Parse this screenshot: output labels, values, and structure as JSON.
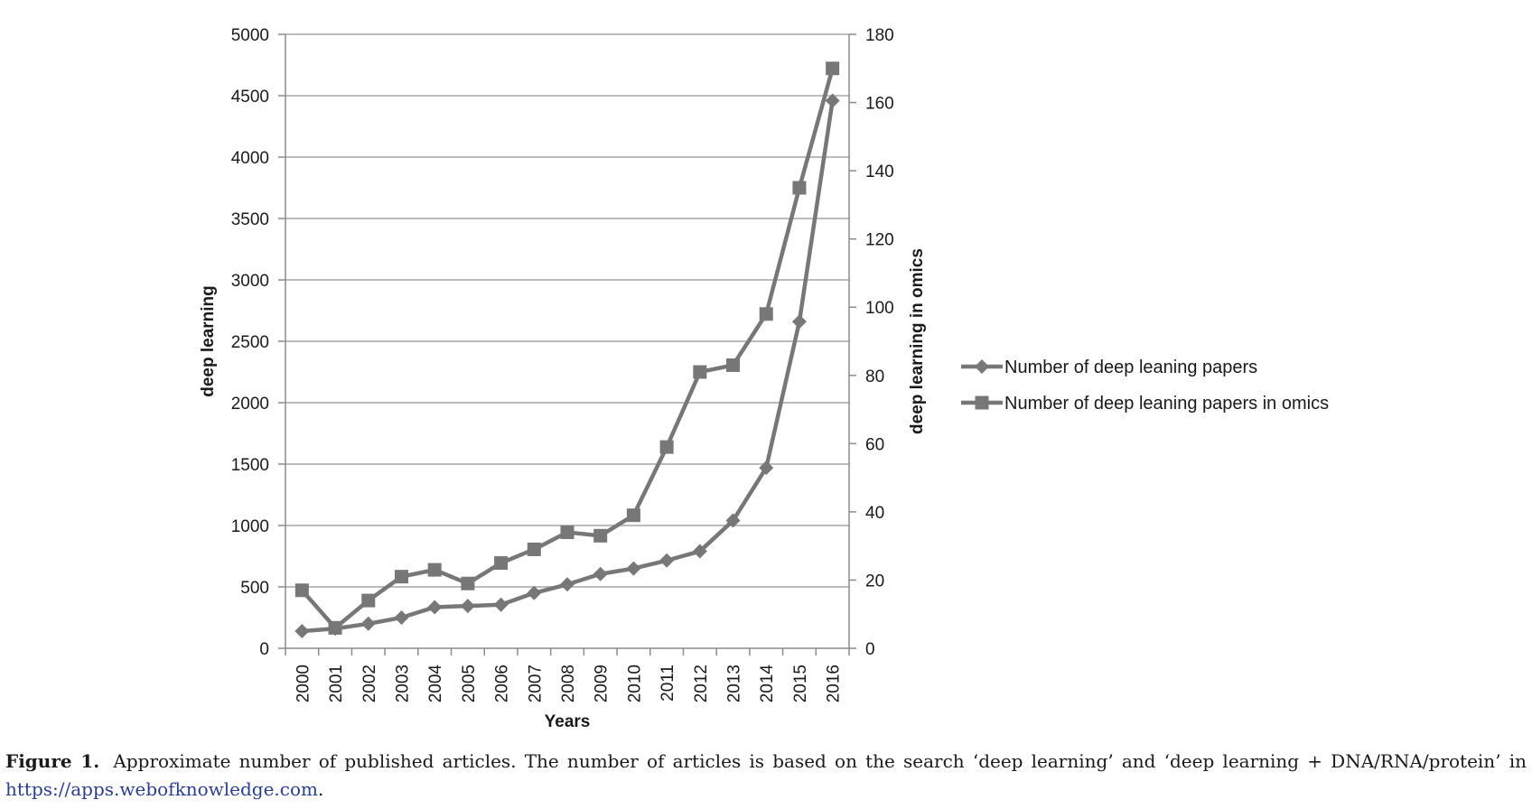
{
  "chart_data": {
    "type": "line",
    "categories": [
      "2000",
      "2001",
      "2002",
      "2003",
      "2004",
      "2005",
      "2006",
      "2007",
      "2008",
      "2009",
      "2010",
      "2011",
      "2012",
      "2013",
      "2014",
      "2015",
      "2016"
    ],
    "xlabel": "Years",
    "ylabel": "deep learning",
    "y2label": "deep learning in omics",
    "ylim": [
      0,
      5000
    ],
    "y2lim": [
      0,
      180
    ],
    "yticks": [
      0,
      500,
      1000,
      1500,
      2000,
      2500,
      3000,
      3500,
      4000,
      4500,
      5000
    ],
    "y2ticks": [
      0,
      20,
      40,
      60,
      80,
      100,
      120,
      140,
      160,
      180
    ],
    "grid": true,
    "legend_position": "right",
    "series": [
      {
        "name": "Number of deep leaning papers",
        "axis": "left",
        "marker": "diamond",
        "color": "#777777",
        "values": [
          140,
          160,
          200,
          250,
          335,
          345,
          355,
          450,
          520,
          605,
          650,
          715,
          790,
          1040,
          1470,
          2660,
          4460
        ]
      },
      {
        "name": "Number of deep leaning papers in omics",
        "axis": "right",
        "marker": "square",
        "color": "#777777",
        "values": [
          17,
          6,
          14,
          21,
          23,
          19,
          25,
          29,
          34,
          33,
          39,
          59,
          81,
          83,
          98,
          135,
          170
        ]
      }
    ]
  },
  "caption": {
    "label": "Figure 1.",
    "text": "Approximate number of published articles. The number of articles is based on the search ‘deep learning’ and ‘deep learning + DNA/RNA/protein’ in",
    "link": "https://apps.webofknowledge.com",
    "end": "."
  }
}
